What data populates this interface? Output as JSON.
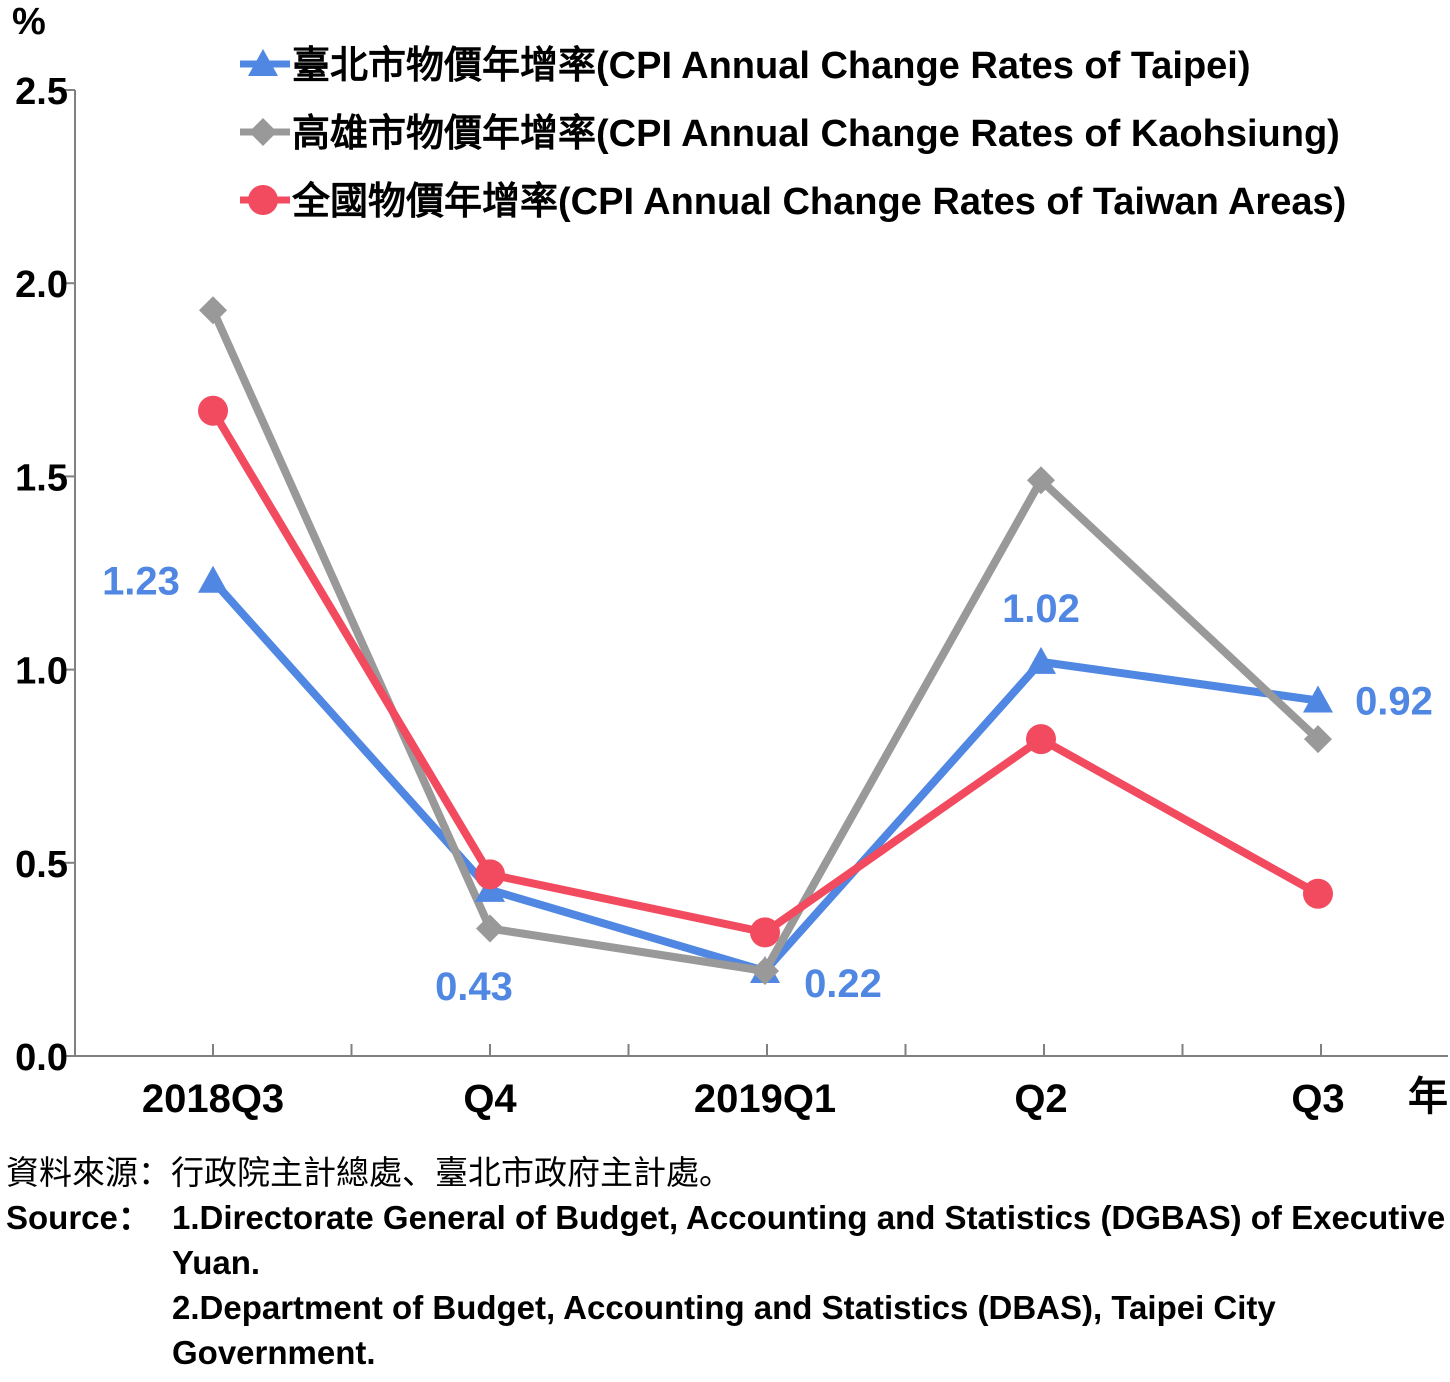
{
  "chart_data": {
    "type": "line",
    "categories": [
      "2018Q3",
      "Q4",
      "2019Q1",
      "Q2",
      "Q3"
    ],
    "ylabel": "%",
    "xlabel": "年",
    "ylim": [
      0,
      2.5
    ],
    "yticks": [
      "0.0",
      "0.5",
      "1.0",
      "1.5",
      "2.0",
      "2.5"
    ],
    "grid": false,
    "legend_position": "top",
    "series": [
      {
        "name": "臺北市物價年增率(CPI Annual Change Rates of Taipei)",
        "color": "#4f87e3",
        "marker": "triangle",
        "values": [
          1.23,
          0.43,
          0.22,
          1.02,
          0.92
        ],
        "data_labels": [
          "1.23",
          "0.43",
          "0.22",
          "1.02",
          "0.92"
        ]
      },
      {
        "name": "高雄市物價年增率(CPI Annual Change Rates of Kaohsiung)",
        "color": "#999999",
        "marker": "diamond",
        "values": [
          1.93,
          0.33,
          0.22,
          1.49,
          0.82
        ]
      },
      {
        "name": "全國物價年增率(CPI Annual Change Rates of Taiwan Areas)",
        "color": "#f24b5f",
        "marker": "circle",
        "values": [
          1.67,
          0.47,
          0.32,
          0.82,
          0.42
        ]
      }
    ]
  },
  "source": {
    "zh": "資料來源：行政院主計總處、臺北市政府主計處。",
    "en_label": "Source：",
    "en_line1": "1.Directorate General of Budget, Accounting and Statistics (DGBAS) of Executive Yuan.",
    "en_line2": "2.Department of Budget, Accounting and Statistics (DBAS), Taipei City Government."
  }
}
